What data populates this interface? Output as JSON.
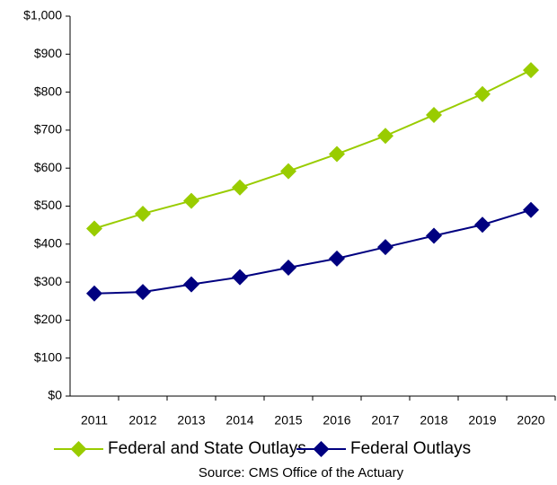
{
  "chart_data": {
    "type": "line",
    "categories": [
      "2011",
      "2012",
      "2013",
      "2014",
      "2015",
      "2016",
      "2017",
      "2018",
      "2019",
      "2020"
    ],
    "series": [
      {
        "name": "Federal and State Outlays",
        "color": "#99cc00",
        "values": [
          441,
          480,
          514,
          549,
          592,
          637,
          685,
          740,
          795,
          858
        ]
      },
      {
        "name": "Federal Outlays",
        "color": "#000080",
        "values": [
          270,
          274,
          294,
          313,
          338,
          362,
          392,
          422,
          451,
          490
        ]
      }
    ],
    "ylim": [
      0,
      1000
    ],
    "yticks": [
      {
        "value": 0,
        "label": "$0"
      },
      {
        "value": 100,
        "label": "$100"
      },
      {
        "value": 200,
        "label": "$200"
      },
      {
        "value": 300,
        "label": "$300"
      },
      {
        "value": 400,
        "label": "$400"
      },
      {
        "value": 500,
        "label": "$500"
      },
      {
        "value": 600,
        "label": "$600"
      },
      {
        "value": 700,
        "label": "$700"
      },
      {
        "value": 800,
        "label": "$800"
      },
      {
        "value": 900,
        "label": "$900"
      },
      {
        "value": 1000,
        "label": "$1,000"
      }
    ],
    "source": "Source: CMS Office of the Actuary"
  }
}
